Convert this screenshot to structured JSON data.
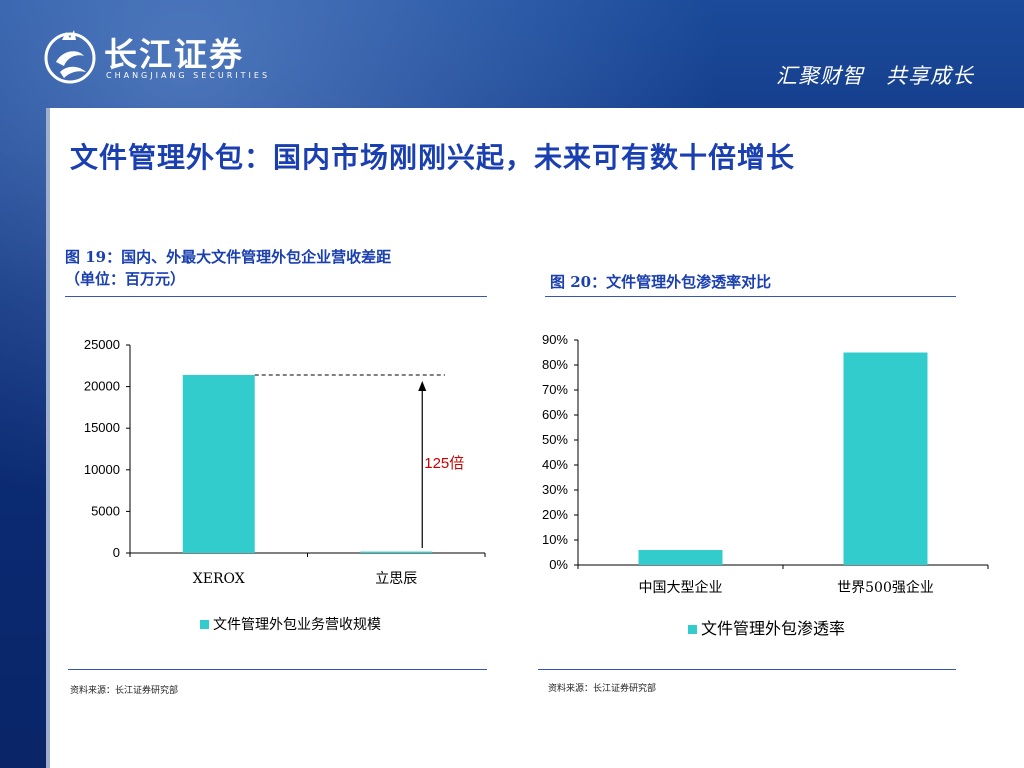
{
  "header": {
    "logo_cn": "长江证券",
    "logo_en": "CHANGJIANG SECURITIES",
    "slogan": "汇聚财智　共享成长"
  },
  "slide": {
    "title": "文件管理外包：国内市场刚刚兴起，未来可有数十倍增长"
  },
  "fig19": {
    "caption_line1": "图 19：国内、外最大文件管理外包企业营收差距",
    "caption_line2": "（单位：百万元）",
    "source": "资料来源：长江证券研究部"
  },
  "fig20": {
    "caption": "图 20：文件管理外包渗透率对比",
    "source": "资料来源：长江证券研究部"
  },
  "colors": {
    "bar": "#33cccc",
    "title_blue": "#1a3fb0",
    "annotation_red": "#cc0000"
  },
  "chart_data": [
    {
      "type": "bar",
      "categories": [
        "XEROX",
        "立思辰"
      ],
      "series": [
        {
          "name": "文件管理外包业务营收规模",
          "values": [
            21400,
            170
          ]
        }
      ],
      "yticks": [
        "0",
        "5000",
        "10000",
        "15000",
        "20000",
        "25000"
      ],
      "ylim": [
        0,
        25000
      ],
      "annotation": "125倍",
      "legend_position": "bottom",
      "grid": false
    },
    {
      "type": "bar",
      "categories": [
        "中国大型企业",
        "世界500强企业"
      ],
      "series": [
        {
          "name": "文件管理外包渗透率",
          "values": [
            0.06,
            0.85
          ]
        }
      ],
      "yticks": [
        "0%",
        "10%",
        "20%",
        "30%",
        "40%",
        "50%",
        "60%",
        "70%",
        "80%",
        "90%"
      ],
      "ylim": [
        0,
        0.9
      ],
      "legend_position": "bottom",
      "grid": false
    }
  ]
}
